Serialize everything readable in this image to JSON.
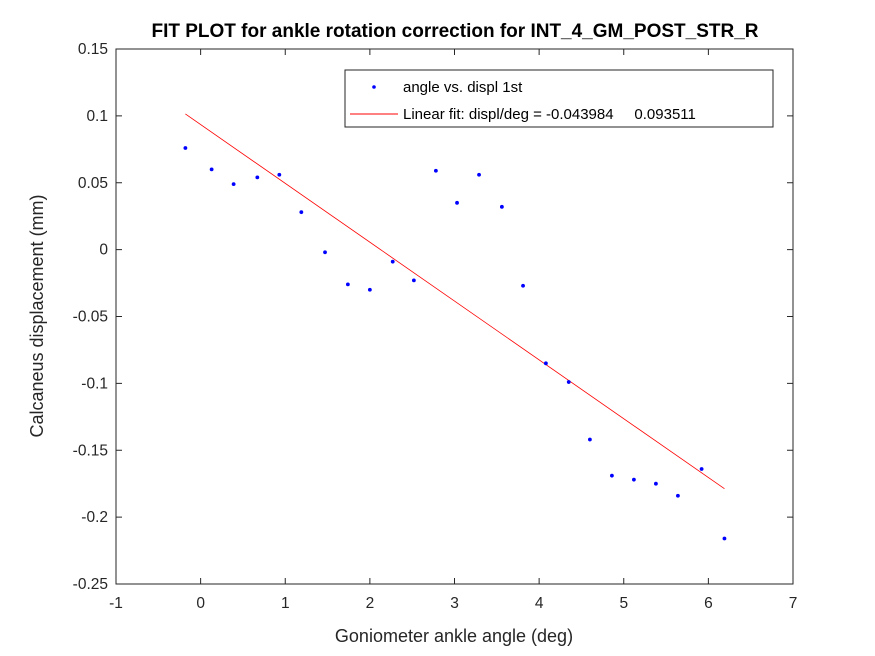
{
  "chart_data": {
    "type": "scatter",
    "title": "FIT PLOT for ankle rotation correction for INT_4_GM_POST_STR_R",
    "xlabel": "Goniometer ankle angle (deg)",
    "ylabel": "Calcaneus displacement (mm)",
    "xlim": [
      -1,
      7
    ],
    "ylim": [
      -0.25,
      0.15
    ],
    "xticks": [
      "-1",
      "0",
      "1",
      "2",
      "3",
      "4",
      "5",
      "6",
      "7"
    ],
    "yticks": [
      "0.15",
      "0.1",
      "0.05",
      "0",
      "-0.05",
      "-0.1",
      "-0.15",
      "-0.2",
      "-0.25"
    ],
    "grid": false,
    "legend_position": "top-right",
    "series": [
      {
        "name": "angle vs. displ 1st",
        "kind": "points",
        "color": "#0000ff",
        "x": [
          -0.18,
          0.13,
          0.39,
          0.67,
          0.93,
          1.19,
          1.47,
          1.74,
          2.0,
          2.27,
          2.52,
          2.78,
          3.03,
          3.29,
          3.56,
          3.81,
          4.08,
          4.35,
          4.6,
          4.86,
          5.12,
          5.38,
          5.64,
          5.92,
          6.19
        ],
        "y": [
          0.076,
          0.06,
          0.049,
          0.054,
          0.056,
          0.028,
          -0.002,
          -0.026,
          -0.03,
          -0.009,
          -0.023,
          0.059,
          0.035,
          0.056,
          0.032,
          -0.027,
          -0.085,
          -0.099,
          -0.142,
          -0.169,
          -0.172,
          -0.175,
          -0.184,
          -0.164,
          -0.216
        ]
      },
      {
        "name": "Linear fit: displ/deg = -0.043984     0.093511",
        "kind": "line",
        "color": "#ff0000",
        "slope": -0.043984,
        "intercept": 0.093511,
        "x_range": [
          -0.18,
          6.19
        ]
      }
    ]
  }
}
